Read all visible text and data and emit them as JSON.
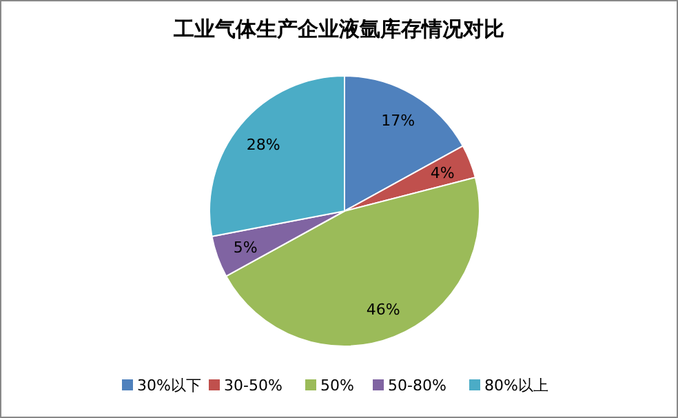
{
  "chart_data": {
    "type": "pie",
    "title": "工业气体生产企业液氩库存情况对比",
    "categories": [
      "30%以下",
      "30-50%",
      "50%",
      "50-80%",
      "80%以上"
    ],
    "values": [
      17,
      4,
      46,
      5,
      28
    ],
    "value_labels": [
      "17%",
      "4%",
      "46%",
      "5%",
      "28%"
    ],
    "colors": [
      "#4f81bd",
      "#c0504d",
      "#9bbb59",
      "#8064a2",
      "#4bacc6"
    ],
    "legend": "bottom"
  }
}
